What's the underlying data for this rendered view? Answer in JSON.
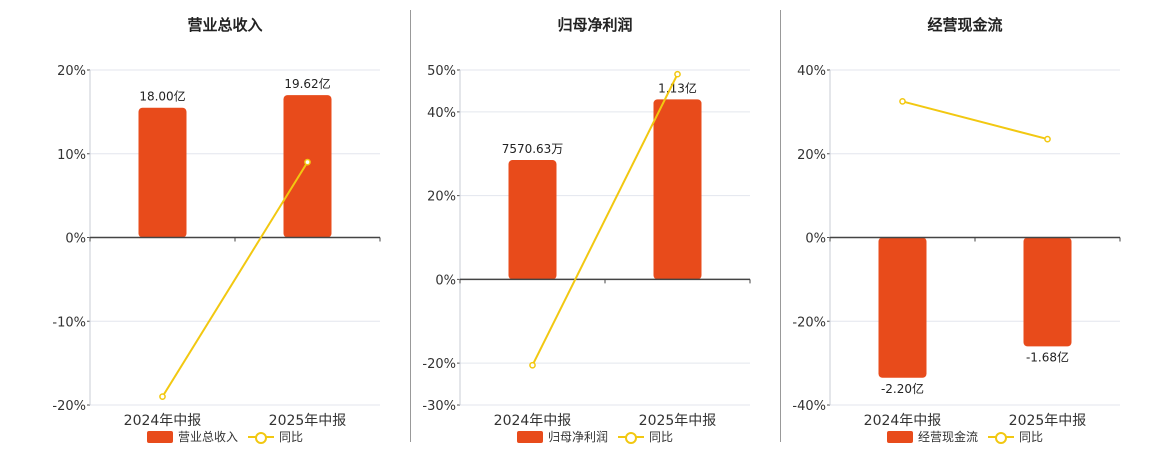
{
  "colors": {
    "bar": "#e84b1b",
    "line": "#f2c811",
    "grid": "#e3e6ee",
    "axis": "#555555"
  },
  "chart_data": [
    {
      "type": "bar",
      "title": "营业总收入",
      "categories": [
        "2024年中报",
        "2025年中报"
      ],
      "series": [
        {
          "name": "营业总收入",
          "values": [
            18.0,
            19.62
          ],
          "labels": [
            "18.00亿",
            "19.62亿"
          ]
        },
        {
          "name": "同比",
          "type": "line",
          "values": [
            -19,
            9
          ]
        }
      ],
      "bar_height_pct": [
        15.5,
        17
      ],
      "ylim": [
        -20,
        20
      ],
      "yticks": [
        20,
        10,
        0,
        -10,
        -20
      ],
      "ytick_labels": [
        "20%",
        "10%",
        "0%",
        "-10%",
        "-20%"
      ],
      "grid": true,
      "legend": "bottom"
    },
    {
      "type": "bar",
      "title": "归母净利润",
      "categories": [
        "2024年中报",
        "2025年中报"
      ],
      "series": [
        {
          "name": "归母净利润",
          "values": [
            0.757063,
            1.13
          ],
          "labels": [
            "7570.63万",
            "1.13亿"
          ]
        },
        {
          "name": "同比",
          "type": "line",
          "values": [
            -20.5,
            49
          ]
        }
      ],
      "bar_height_pct": [
        28.5,
        43
      ],
      "ylim": [
        -30,
        50
      ],
      "yticks": [
        50,
        40,
        20,
        0,
        -20,
        -30
      ],
      "ytick_labels": [
        "50%",
        "40%",
        "20%",
        "0%",
        "-20%",
        "-30%"
      ],
      "grid": true,
      "legend": "bottom"
    },
    {
      "type": "bar",
      "title": "经营现金流",
      "categories": [
        "2024年中报",
        "2025年中报"
      ],
      "series": [
        {
          "name": "经营现金流",
          "values": [
            -2.2,
            -1.68
          ],
          "labels": [
            "-2.20亿",
            "-1.68亿"
          ]
        },
        {
          "name": "同比",
          "type": "line",
          "values": [
            32.5,
            23.5
          ]
        }
      ],
      "bar_height_pct": [
        -33.5,
        -26
      ],
      "ylim": [
        -40,
        40
      ],
      "yticks": [
        40,
        20,
        0,
        -20,
        -40
      ],
      "ytick_labels": [
        "40%",
        "20%",
        "0%",
        "-20%",
        "-40%"
      ],
      "grid": true,
      "legend": "bottom"
    }
  ]
}
